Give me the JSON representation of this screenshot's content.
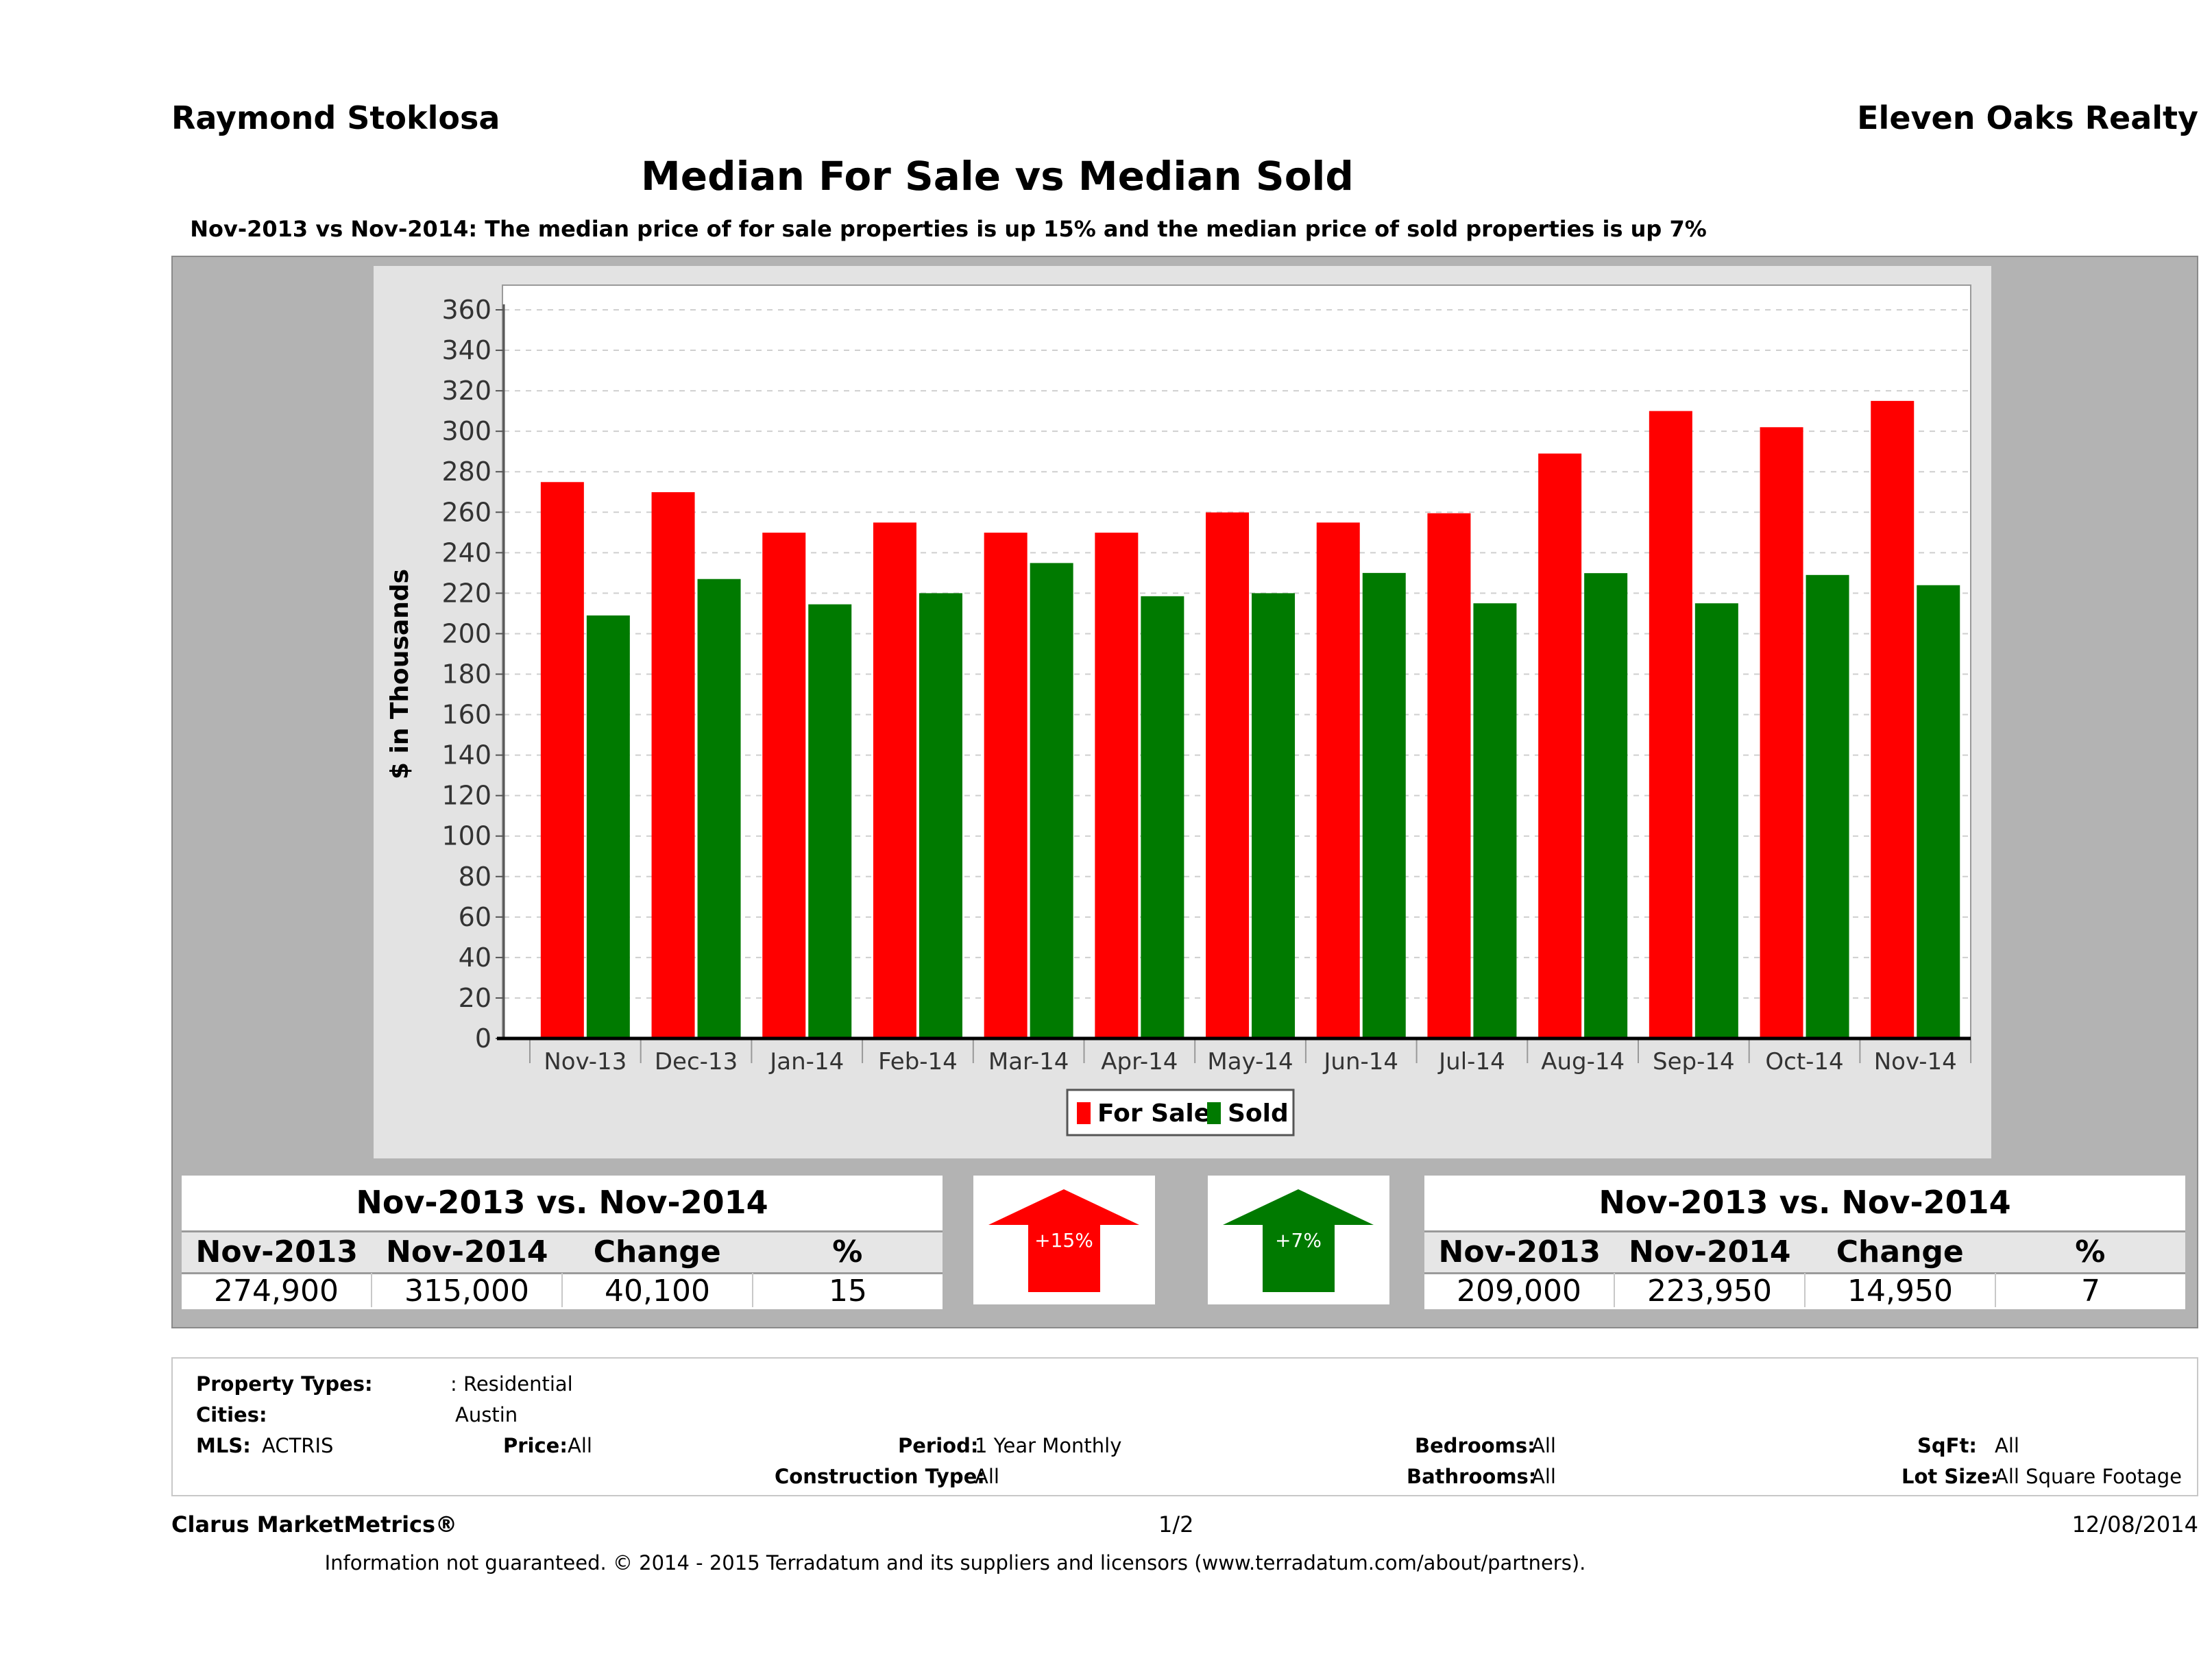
{
  "header": {
    "agent": "Raymond Stoklosa",
    "company": "Eleven Oaks Realty",
    "title": "Median For Sale vs Median Sold",
    "subtitle": "Nov-2013 vs Nov-2014: The median price of for sale properties is up 15% and the median price of sold properties is up 7%"
  },
  "chart_data": {
    "type": "bar",
    "title": "Median For Sale vs Median Sold",
    "ylabel": "$ in Thousands",
    "xlabel": "",
    "ylim": [
      0,
      360
    ],
    "yticks": [
      0,
      20,
      40,
      60,
      80,
      100,
      120,
      140,
      160,
      180,
      200,
      220,
      240,
      260,
      280,
      300,
      320,
      340,
      360
    ],
    "grid": true,
    "legend_position": "bottom",
    "categories": [
      "Nov-13",
      "Dec-13",
      "Jan-14",
      "Feb-14",
      "Mar-14",
      "Apr-14",
      "May-14",
      "Jun-14",
      "Jul-14",
      "Aug-14",
      "Sep-14",
      "Oct-14",
      "Nov-14"
    ],
    "series": [
      {
        "name": "For Sale",
        "color": "#ff0000",
        "values": [
          274.9,
          269.9,
          249.9,
          254.9,
          249.9,
          249.9,
          259.9,
          254.9,
          259.5,
          289.0,
          310.0,
          302.0,
          315.0
        ]
      },
      {
        "name": "Sold",
        "color": "#007a00",
        "values": [
          209.0,
          227.0,
          214.5,
          220.0,
          234.9,
          218.5,
          220.0,
          230.0,
          215.0,
          229.9,
          215.0,
          229.0,
          223.95
        ]
      }
    ]
  },
  "stats_left": {
    "title": "Nov-2013 vs. Nov-2014",
    "headers": [
      "Nov-2013",
      "Nov-2014",
      "Change",
      "%"
    ],
    "values": [
      "274,900",
      "315,000",
      "40,100",
      "15"
    ]
  },
  "stats_right": {
    "title": "Nov-2013 vs. Nov-2014",
    "headers": [
      "Nov-2013",
      "Nov-2014",
      "Change",
      "%"
    ],
    "values": [
      "209,000",
      "223,950",
      "14,950",
      "7"
    ]
  },
  "arrows": {
    "for_sale_label": "+15%",
    "for_sale_color": "#ff0000",
    "sold_label": "+7%",
    "sold_color": "#007a00"
  },
  "filters": {
    "property_types_label": "Property Types:",
    "property_types_value": ": Residential",
    "cities_label": "Cities:",
    "cities_value": "Austin",
    "mls_label": "MLS:",
    "mls_value": "ACTRIS",
    "price_label": "Price:",
    "price_value": "All",
    "period_label": "Period:",
    "period_value": "1 Year Monthly",
    "construction_label": "Construction Type:",
    "construction_value": "All",
    "bedrooms_label": "Bedrooms:",
    "bedrooms_value": "All",
    "bathrooms_label": "Bathrooms:",
    "bathrooms_value": "All",
    "sqft_label": "SqFt:",
    "sqft_value": "All",
    "lotsize_label": "Lot Size:",
    "lotsize_value": "All Square Footage"
  },
  "footer": {
    "brand": "Clarus MarketMetrics®",
    "page": "1/2",
    "date": "12/08/2014",
    "disclaimer": "Information not guaranteed. © 2014 - 2015 Terradatum and its suppliers and licensors (www.terradatum.com/about/partners)."
  }
}
